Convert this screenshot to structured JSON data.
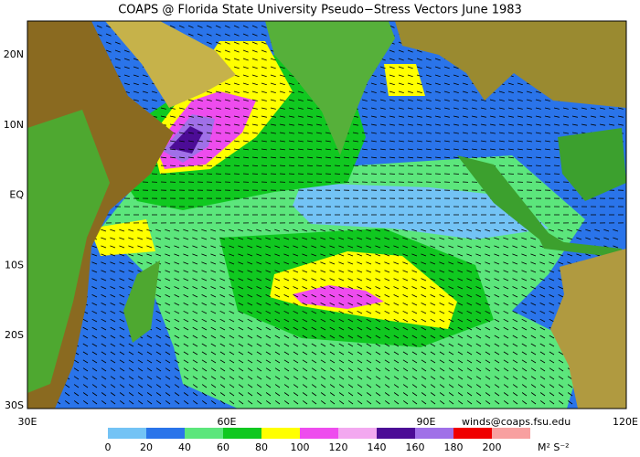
{
  "title": "COAPS @ Florida State University Pseudo−Stress Vectors  June 1983",
  "lat_labels": [
    "20N",
    "10N",
    "EQ",
    "10S",
    "20S",
    "30S"
  ],
  "lon_labels": [
    "30E",
    "60E",
    "90E",
    "120E"
  ],
  "credit": "winds@coaps.fsu.edu",
  "colorbar": {
    "ticks": [
      0,
      20,
      40,
      60,
      80,
      100,
      120,
      140,
      160,
      180,
      200
    ],
    "colors": [
      "#73c3f5",
      "#2a74ea",
      "#5ce67c",
      "#10c820",
      "#ffff00",
      "#ee4cee",
      "#f3a8f0",
      "#4c0c96",
      "#a070e8",
      "#f00000",
      "#f8a0a0"
    ],
    "unit": "M² S⁻²"
  }
}
